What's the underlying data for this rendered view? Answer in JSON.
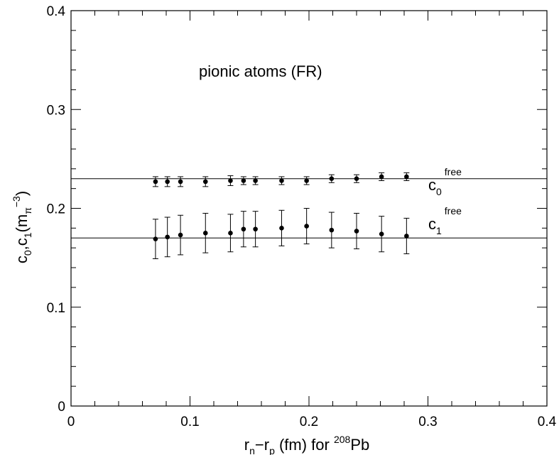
{
  "chart_data": {
    "type": "scatter",
    "title": "",
    "annotation": "pionic atoms (FR)",
    "xlabel": {
      "r": "r",
      "n": "n",
      "minus": "−r",
      "p": "p",
      "rest": " (fm) for ",
      "mass": "208",
      "element": "Pb"
    },
    "ylabel": {
      "c0": "c",
      "sub0": "0",
      "comma": ",c",
      "sub1": "1",
      "open": "(m",
      "pi": "π",
      "exp": "−3",
      "close": ")"
    },
    "xlim": [
      0,
      0.4
    ],
    "ylim": [
      0,
      0.4
    ],
    "xticks": [
      0,
      0.1,
      0.2,
      0.3,
      0.4
    ],
    "xtick_labels": [
      "0",
      "0.1",
      "0.2",
      "0.3",
      "0.4"
    ],
    "yticks": [
      0,
      0.1,
      0.2,
      0.3,
      0.4
    ],
    "ytick_labels": [
      "0",
      "0.1",
      "0.2",
      "0.3",
      "0.4"
    ],
    "grid": false,
    "reference_lines": [
      {
        "label_main": "c",
        "label_sub": "0",
        "label_sup": "free",
        "y": 0.23
      },
      {
        "label_main": "c",
        "label_sub": "1",
        "label_sup": "free",
        "y": 0.17
      }
    ],
    "x": [
      0.071,
      0.081,
      0.092,
      0.113,
      0.134,
      0.145,
      0.155,
      0.177,
      0.198,
      0.219,
      0.24,
      0.261,
      0.282
    ],
    "series": [
      {
        "values": [
          0.227,
          0.227,
          0.227,
          0.227,
          0.228,
          0.228,
          0.228,
          0.228,
          0.228,
          0.23,
          0.23,
          0.232,
          0.232
        ],
        "errors": [
          0.005,
          0.005,
          0.005,
          0.005,
          0.005,
          0.004,
          0.004,
          0.004,
          0.004,
          0.004,
          0.004,
          0.004,
          0.004
        ]
      },
      {
        "values": [
          0.169,
          0.171,
          0.173,
          0.175,
          0.175,
          0.179,
          0.179,
          0.18,
          0.182,
          0.178,
          0.177,
          0.174,
          0.172
        ],
        "errors": [
          0.02,
          0.02,
          0.02,
          0.02,
          0.019,
          0.018,
          0.018,
          0.018,
          0.018,
          0.018,
          0.018,
          0.018,
          0.018
        ]
      }
    ]
  }
}
